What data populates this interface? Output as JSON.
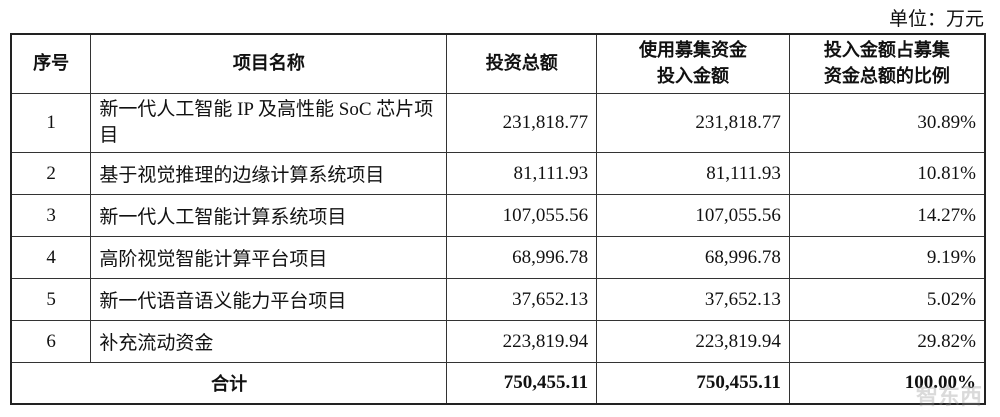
{
  "unit_label": "单位：万元",
  "headers": [
    "序号",
    "项目名称",
    "投资总额",
    "使用募集资金投入金额",
    "投入金额占募集资金总额的比例"
  ],
  "header_lines": {
    "col4": [
      "使用募集资金",
      "投入金额"
    ],
    "col5": [
      "投入金额占募集",
      "资金总额的比例"
    ]
  },
  "rows": [
    {
      "no": "1",
      "name": "新一代人工智能 IP 及高性能 SoC 芯片项目",
      "total": "231,818.77",
      "raised": "231,818.77",
      "ratio": "30.89%"
    },
    {
      "no": "2",
      "name": "基于视觉推理的边缘计算系统项目",
      "total": "81,111.93",
      "raised": "81,111.93",
      "ratio": "10.81%"
    },
    {
      "no": "3",
      "name": "新一代人工智能计算系统项目",
      "total": "107,055.56",
      "raised": "107,055.56",
      "ratio": "14.27%"
    },
    {
      "no": "4",
      "name": "高阶视觉智能计算平台项目",
      "total": "68,996.78",
      "raised": "68,996.78",
      "ratio": "9.19%"
    },
    {
      "no": "5",
      "name": "新一代语音语义能力平台项目",
      "total": "37,652.13",
      "raised": "37,652.13",
      "ratio": "5.02%"
    },
    {
      "no": "6",
      "name": "补充流动资金",
      "total": "223,819.94",
      "raised": "223,819.94",
      "ratio": "29.82%"
    }
  ],
  "total_row": {
    "label": "合计",
    "total": "750,455.11",
    "raised": "750,455.11",
    "ratio": "100.00%"
  },
  "watermark": "智东西"
}
